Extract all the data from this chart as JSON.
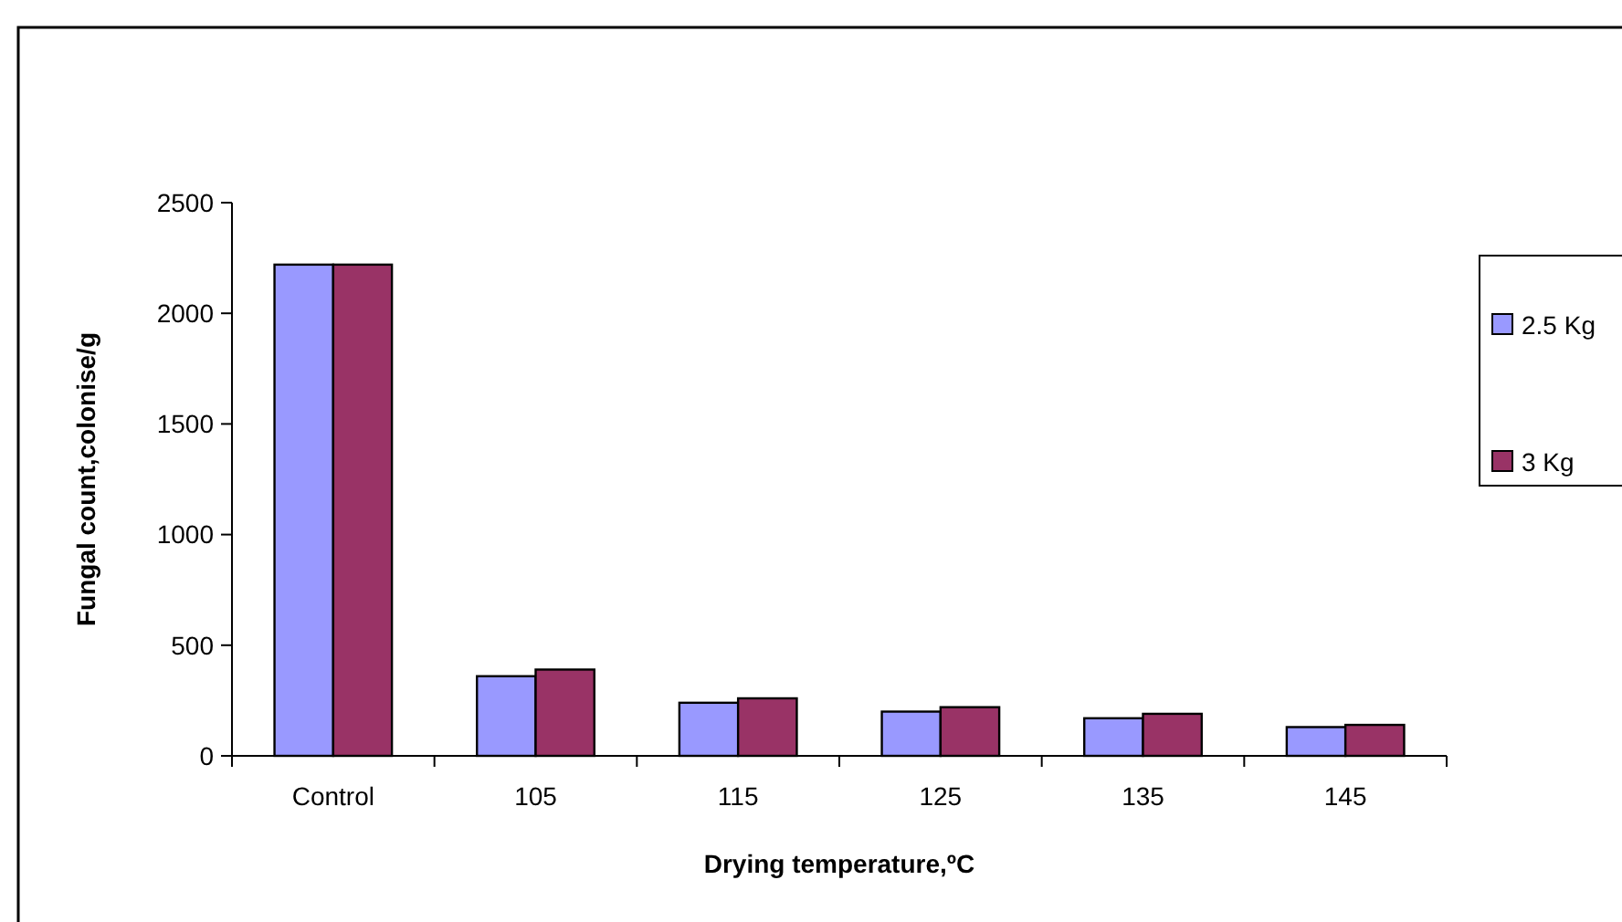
{
  "chart_data": {
    "type": "bar",
    "xlabel": "Drying temperature,ºC",
    "ylabel": "Fungal count,colonise/g",
    "categories": [
      "Control",
      "105",
      "115",
      "125",
      "135",
      "145"
    ],
    "series": [
      {
        "name": "2.5 Kg",
        "color": "#9999ff",
        "values": [
          2220,
          360,
          240,
          200,
          170,
          130
        ]
      },
      {
        "name": "3 Kg",
        "color": "#993366",
        "values": [
          2220,
          390,
          260,
          220,
          190,
          140
        ]
      }
    ],
    "ylim": [
      0,
      2500
    ],
    "yticks": [
      0,
      500,
      1000,
      1500,
      2000,
      2500
    ],
    "grid": false,
    "legend": "right"
  }
}
